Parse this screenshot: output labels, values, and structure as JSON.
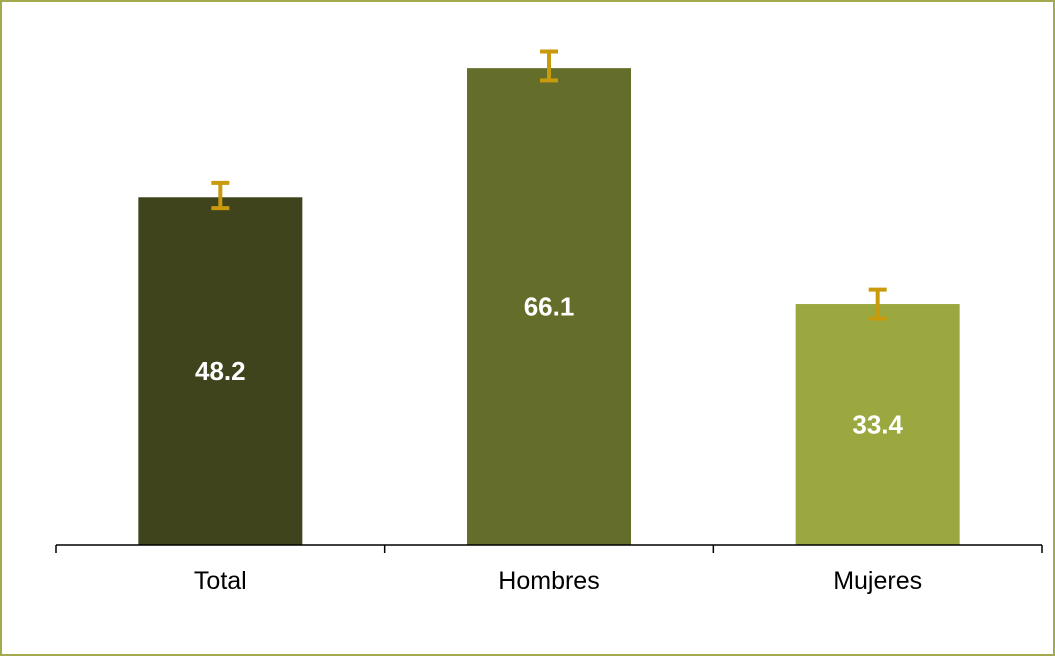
{
  "chart_data": {
    "type": "bar",
    "categories": [
      "Total",
      "Hombres",
      "Mujeres"
    ],
    "values": [
      48.2,
      66.1,
      33.4
    ],
    "error_bars": [
      {
        "low": 46.7,
        "high": 50.2
      },
      {
        "low": 64.4,
        "high": 68.4
      },
      {
        "low": 31.4,
        "high": 35.4
      }
    ],
    "bar_colors": [
      "#3f441d",
      "#656d2b",
      "#9aa83f"
    ],
    "error_bar_color": "#c89a0c",
    "frame_color": "#a3a94d",
    "ylim": [
      0,
      70
    ],
    "grid": false,
    "legend": "none",
    "title": "",
    "xlabel": "",
    "ylabel": ""
  }
}
